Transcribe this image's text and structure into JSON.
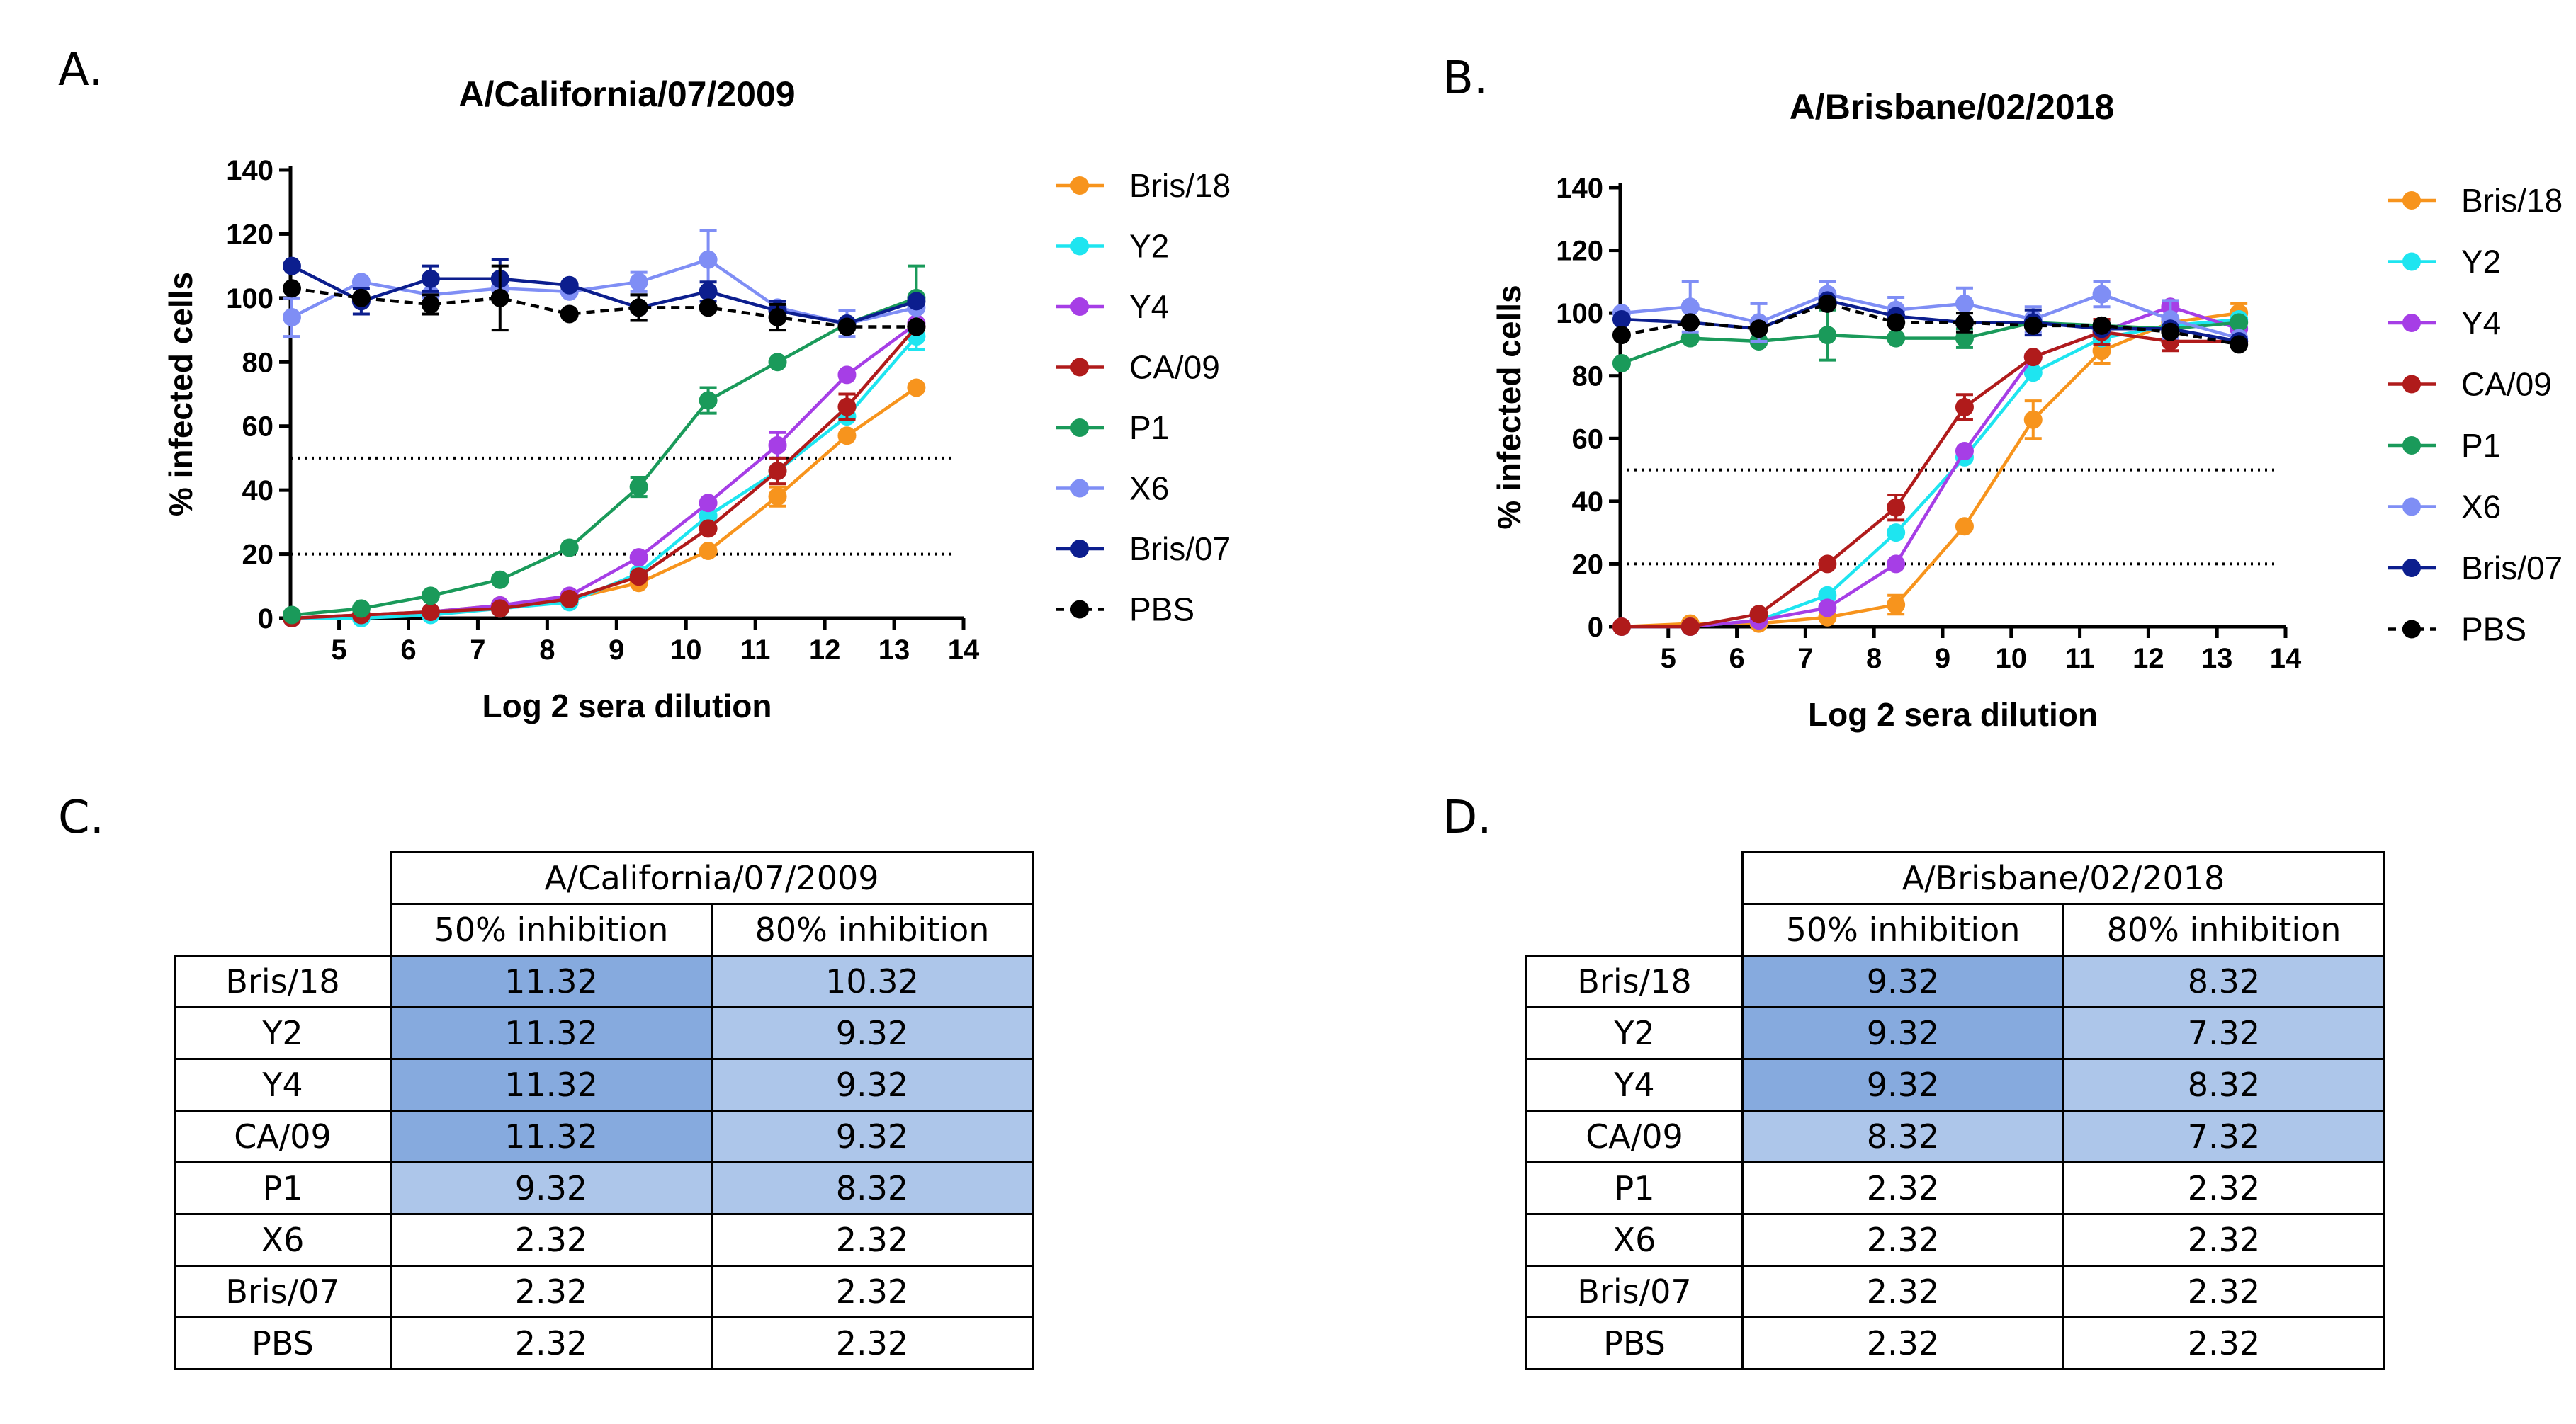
{
  "panels": {
    "a": "A.",
    "b": "B.",
    "c": "C.",
    "d": "D."
  },
  "chart_data": [
    {
      "type": "line",
      "title": "A/California/07/2009",
      "xlabel": "Log 2 sera dilution",
      "ylabel": "% infected cells",
      "xlim": [
        4.3,
        14
      ],
      "ylim": [
        0,
        140
      ],
      "xticks": [
        5,
        6,
        7,
        8,
        9,
        10,
        11,
        12,
        13,
        14
      ],
      "yticks": [
        0,
        20,
        40,
        60,
        80,
        100,
        120,
        140
      ],
      "thresholds": [
        50,
        20
      ],
      "x": [
        4.32,
        5.32,
        6.32,
        7.32,
        8.32,
        9.32,
        10.32,
        11.32,
        12.32,
        13.32
      ],
      "series": [
        {
          "name": "Bris/18",
          "color": "#f7941d",
          "dashed": false,
          "values": [
            0,
            1,
            2,
            4,
            6,
            11,
            21,
            38,
            57,
            72
          ],
          "errors": [
            0,
            0,
            0,
            0,
            0,
            0,
            0,
            3,
            0,
            0
          ]
        },
        {
          "name": "Y2",
          "color": "#1ee5f0",
          "dashed": false,
          "values": [
            0,
            0,
            1,
            3,
            5,
            14,
            32,
            46,
            63,
            88
          ],
          "errors": [
            0,
            0,
            0,
            0,
            0,
            0,
            0,
            0,
            0,
            4
          ]
        },
        {
          "name": "Y4",
          "color": "#a63ee6",
          "dashed": false,
          "values": [
            0,
            1,
            2,
            4,
            7,
            19,
            36,
            54,
            76,
            92
          ],
          "errors": [
            0,
            0,
            0,
            0,
            0,
            0,
            0,
            4,
            0,
            0
          ]
        },
        {
          "name": "CA/09",
          "color": "#b01b1b",
          "dashed": false,
          "values": [
            0,
            1,
            2,
            3,
            6,
            13,
            28,
            46,
            66,
            91
          ],
          "errors": [
            0,
            0,
            0,
            0,
            0,
            0,
            0,
            4,
            4,
            0
          ]
        },
        {
          "name": "P1",
          "color": "#1a9a5a",
          "dashed": false,
          "values": [
            1,
            3,
            7,
            12,
            22,
            41,
            68,
            80,
            92,
            100
          ],
          "errors": [
            0,
            0,
            0,
            0,
            0,
            3,
            4,
            0,
            0,
            10
          ]
        },
        {
          "name": "X6",
          "color": "#7f8ef5",
          "dashed": false,
          "values": [
            94,
            105,
            101,
            103,
            102,
            105,
            112,
            97,
            92,
            97
          ],
          "errors": [
            6,
            0,
            0,
            0,
            0,
            3,
            9,
            0,
            4,
            0
          ]
        },
        {
          "name": "Bris/07",
          "color": "#0c1e8e",
          "dashed": false,
          "values": [
            110,
            99,
            106,
            106,
            104,
            97,
            102,
            96,
            92,
            99
          ],
          "errors": [
            0,
            4,
            4,
            6,
            0,
            4,
            3,
            3,
            0,
            0
          ]
        },
        {
          "name": "PBS",
          "color": "#000000",
          "dashed": true,
          "values": [
            103,
            100,
            98,
            100,
            95,
            97,
            97,
            94,
            91,
            91
          ],
          "errors": [
            0,
            0,
            3,
            10,
            0,
            4,
            0,
            4,
            0,
            0
          ]
        }
      ]
    },
    {
      "type": "line",
      "title": "A/Brisbane/02/2018",
      "xlabel": "Log 2 sera dilution",
      "ylabel": "% infected cells",
      "xlim": [
        4.3,
        14
      ],
      "ylim": [
        0,
        140
      ],
      "xticks": [
        5,
        6,
        7,
        8,
        9,
        10,
        11,
        12,
        13,
        14
      ],
      "yticks": [
        0,
        20,
        40,
        60,
        80,
        100,
        120,
        140
      ],
      "thresholds": [
        50,
        20
      ],
      "x": [
        4.32,
        5.32,
        6.32,
        7.32,
        8.32,
        9.32,
        10.32,
        11.32,
        12.32,
        13.32
      ],
      "series": [
        {
          "name": "Bris/18",
          "color": "#f7941d",
          "dashed": false,
          "values": [
            0,
            1,
            1,
            3,
            7,
            32,
            66,
            88,
            97,
            100
          ],
          "errors": [
            0,
            0,
            0,
            0,
            3,
            0,
            6,
            4,
            0,
            3
          ]
        },
        {
          "name": "Y2",
          "color": "#1ee5f0",
          "dashed": false,
          "values": [
            0,
            0,
            2,
            10,
            30,
            54,
            81,
            92,
            96,
            98
          ],
          "errors": [
            0,
            0,
            0,
            0,
            0,
            0,
            0,
            0,
            0,
            0
          ]
        },
        {
          "name": "Y4",
          "color": "#a63ee6",
          "dashed": false,
          "values": [
            0,
            0,
            2,
            6,
            20,
            56,
            86,
            94,
            102,
            95
          ],
          "errors": [
            0,
            0,
            0,
            0,
            0,
            0,
            0,
            0,
            0,
            0
          ]
        },
        {
          "name": "CA/09",
          "color": "#b01b1b",
          "dashed": false,
          "values": [
            0,
            0,
            4,
            20,
            38,
            70,
            86,
            94,
            91,
            91
          ],
          "errors": [
            0,
            0,
            0,
            0,
            4,
            4,
            0,
            4,
            3,
            0
          ]
        },
        {
          "name": "P1",
          "color": "#1a9a5a",
          "dashed": false,
          "values": [
            84,
            92,
            91,
            93,
            92,
            92,
            97,
            96,
            95,
            97
          ],
          "errors": [
            0,
            0,
            0,
            8,
            0,
            3,
            0,
            0,
            0,
            0
          ]
        },
        {
          "name": "X6",
          "color": "#7f8ef5",
          "dashed": false,
          "values": [
            100,
            102,
            97,
            106,
            101,
            103,
            98,
            106,
            98,
            92
          ],
          "errors": [
            0,
            8,
            6,
            4,
            4,
            5,
            4,
            4,
            6,
            0
          ]
        },
        {
          "name": "Bris/07",
          "color": "#0c1e8e",
          "dashed": false,
          "values": [
            98,
            97,
            95,
            104,
            99,
            97,
            97,
            95,
            95,
            91
          ],
          "errors": [
            0,
            0,
            0,
            0,
            0,
            0,
            4,
            0,
            0,
            0
          ]
        },
        {
          "name": "PBS",
          "color": "#000000",
          "dashed": true,
          "values": [
            93,
            97,
            95,
            103,
            97,
            97,
            96,
            96,
            94,
            90
          ],
          "errors": [
            0,
            0,
            0,
            0,
            0,
            3,
            0,
            0,
            0,
            0
          ]
        }
      ]
    }
  ],
  "tables": [
    {
      "title": "A/California/07/2009",
      "col1": "50% inhibition",
      "col2": "80% inhibition",
      "rows": [
        {
          "label": "Bris/18",
          "v50": "11.32",
          "v80": "10.32",
          "s50": "dark",
          "s80": "light"
        },
        {
          "label": "Y2",
          "v50": "11.32",
          "v80": "9.32",
          "s50": "dark",
          "s80": "light"
        },
        {
          "label": "Y4",
          "v50": "11.32",
          "v80": "9.32",
          "s50": "dark",
          "s80": "light"
        },
        {
          "label": "CA/09",
          "v50": "11.32",
          "v80": "9.32",
          "s50": "dark",
          "s80": "light"
        },
        {
          "label": "P1",
          "v50": "9.32",
          "v80": "8.32",
          "s50": "light",
          "s80": "light"
        },
        {
          "label": "X6",
          "v50": "2.32",
          "v80": "2.32",
          "s50": "none",
          "s80": "none"
        },
        {
          "label": "Bris/07",
          "v50": "2.32",
          "v80": "2.32",
          "s50": "none",
          "s80": "none"
        },
        {
          "label": "PBS",
          "v50": "2.32",
          "v80": "2.32",
          "s50": "none",
          "s80": "none"
        }
      ]
    },
    {
      "title": "A/Brisbane/02/2018",
      "col1": "50% inhibition",
      "col2": "80% inhibition",
      "rows": [
        {
          "label": "Bris/18",
          "v50": "9.32",
          "v80": "8.32",
          "s50": "dark",
          "s80": "light"
        },
        {
          "label": "Y2",
          "v50": "9.32",
          "v80": "7.32",
          "s50": "dark",
          "s80": "light"
        },
        {
          "label": "Y4",
          "v50": "9.32",
          "v80": "8.32",
          "s50": "dark",
          "s80": "light"
        },
        {
          "label": "CA/09",
          "v50": "8.32",
          "v80": "7.32",
          "s50": "light",
          "s80": "light"
        },
        {
          "label": "P1",
          "v50": "2.32",
          "v80": "2.32",
          "s50": "none",
          "s80": "none"
        },
        {
          "label": "X6",
          "v50": "2.32",
          "v80": "2.32",
          "s50": "none",
          "s80": "none"
        },
        {
          "label": "Bris/07",
          "v50": "2.32",
          "v80": "2.32",
          "s50": "none",
          "s80": "none"
        },
        {
          "label": "PBS",
          "v50": "2.32",
          "v80": "2.32",
          "s50": "none",
          "s80": "none"
        }
      ]
    }
  ]
}
